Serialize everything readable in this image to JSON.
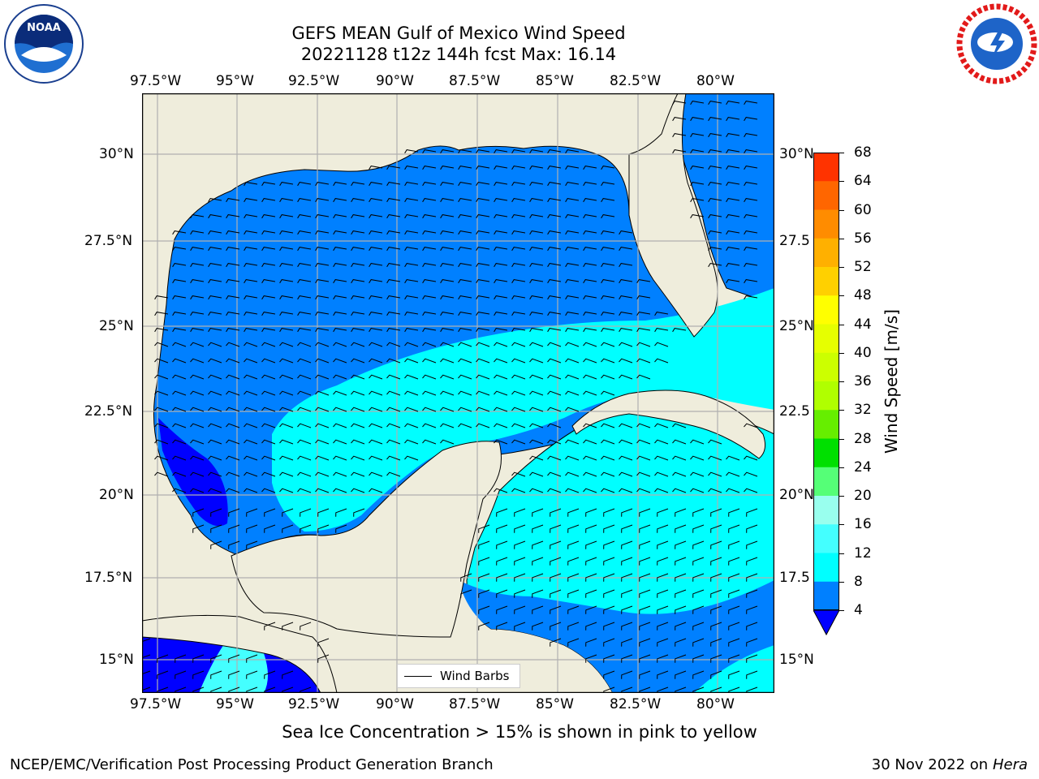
{
  "title_line1": "GEFS MEAN Gulf of Mexico Wind Speed",
  "title_line2": "20221128 t12z 144h fcst   Max: 16.14",
  "lon_ticks": [
    "97.5°W",
    "95°W",
    "92.5°W",
    "90°W",
    "87.5°W",
    "85°W",
    "82.5°W",
    "80°W"
  ],
  "lat_ticks_left": [
    "30°N",
    "27.5°N",
    "25°N",
    "22.5°N",
    "20°N",
    "17.5°N",
    "15°N"
  ],
  "lat_ticks_right": [
    "30°N",
    "27.5",
    "25°N",
    "22.5",
    "20°N",
    "17.5",
    "15°N"
  ],
  "legend_label": "Wind Barbs",
  "colorbar": {
    "label": "Wind Speed [m/s]",
    "ticks": [
      "68",
      "64",
      "60",
      "56",
      "52",
      "48",
      "44",
      "40",
      "36",
      "32",
      "28",
      "24",
      "20",
      "16",
      "12",
      "8",
      "4"
    ],
    "colors": [
      "#ff0000",
      "#ff3300",
      "#ff6600",
      "#ff8c00",
      "#ffb000",
      "#ffd000",
      "#ffff00",
      "#e6ff00",
      "#ccff00",
      "#b0ff00",
      "#66ee00",
      "#00e000",
      "#55ff77",
      "#99ffee",
      "#44ffff",
      "#00ffff",
      "#0080ff"
    ],
    "under_color": "#0000ff"
  },
  "note": "Sea Ice Concentration > 15% is shown in pink to yellow",
  "footer_left": "NCEP/EMC/Verification Post Processing Product Generation Branch",
  "footer_date": "30 Nov 2022 on",
  "footer_host": "Hera",
  "logos": {
    "left": "NOAA",
    "right": "NATIONAL WEATHER SERVICE"
  },
  "colors": {
    "land": "#efeddc",
    "ocean_4_8": "#0080ff",
    "ocean_8_12": "#00ffff",
    "ocean_lt4": "#0000ff",
    "ocean_12_16": "#44ffff"
  }
}
